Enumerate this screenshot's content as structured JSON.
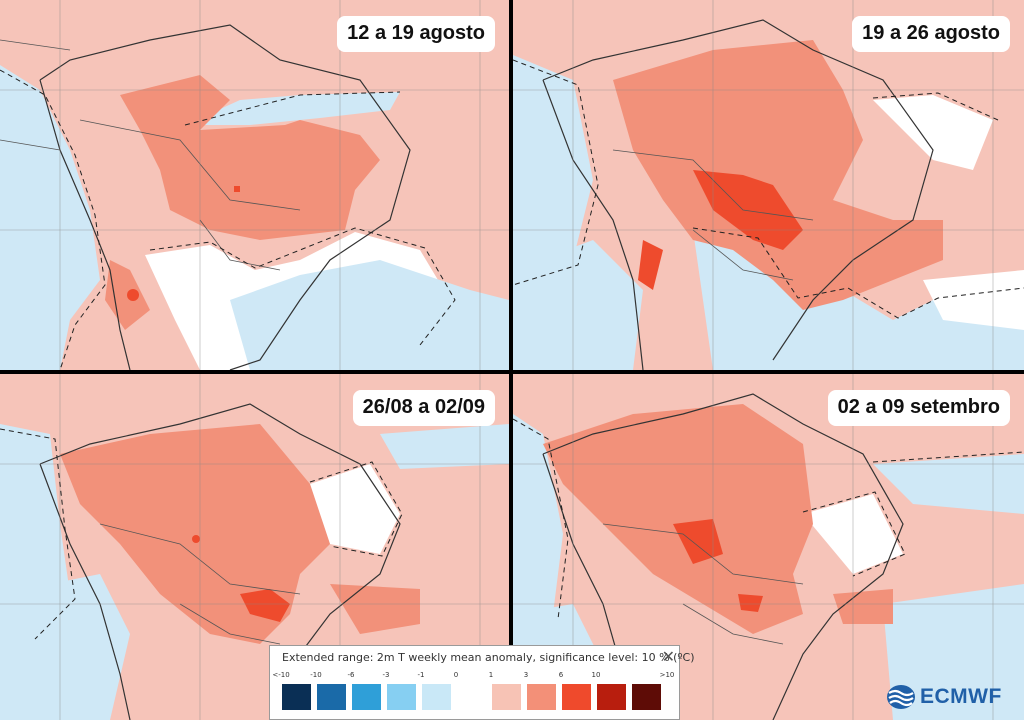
{
  "panels": [
    {
      "label": "12 a 19 agosto"
    },
    {
      "label": "19 a 26 agosto"
    },
    {
      "label": "26/08 a 02/09"
    },
    {
      "label": "02 a 09 setembro"
    }
  ],
  "legend": {
    "title": "Extended range: 2m T weekly mean anomaly, significance level: 10 % (ºC)",
    "close_icon": "close-icon",
    "ticks": [
      "<-10",
      "-10",
      "-6",
      "-3",
      "-1",
      "0",
      "1",
      "3",
      "6",
      "10",
      ">10"
    ],
    "colors": [
      "#0a2f55",
      "#1a6aa8",
      "#2f9fd8",
      "#86cff2",
      "#c9e8f7",
      "#ffffff",
      "#f7c3b5",
      "#f39078",
      "#ef4a2c",
      "#b81e0e",
      "#5e0c06"
    ]
  },
  "logo": {
    "text": "ECMWF",
    "icon": "ecmwf-logo-icon"
  },
  "colors": {
    "background_anomaly": "#f6c4b9",
    "cold_anomaly": "#cfe8f6",
    "neutral": "#ffffff",
    "warm_anomaly": "#f2917a",
    "strong_warm_anomaly": "#ee4b2d",
    "accent": "#2060a8"
  }
}
